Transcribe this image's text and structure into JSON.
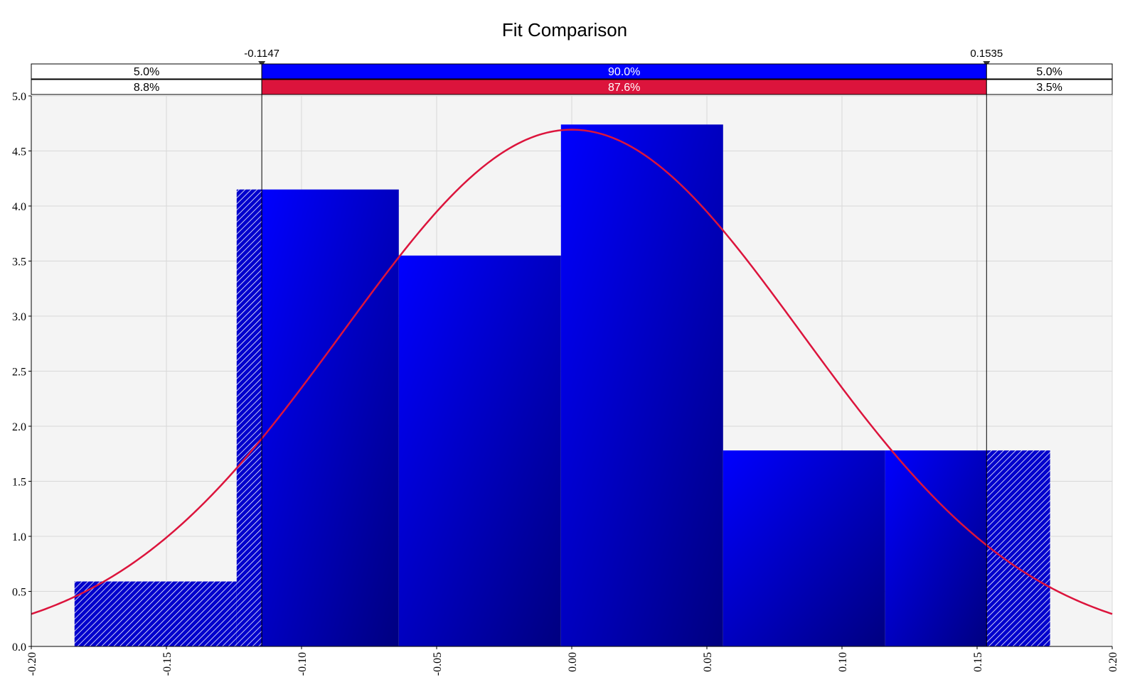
{
  "chart_data": {
    "type": "bar",
    "title": "Fit Comparison",
    "xlabel": "",
    "ylabel": "",
    "xlim": [
      -0.2,
      0.2
    ],
    "ylim": [
      0,
      5.0
    ],
    "x_ticks": [
      "-0.20",
      "-0.15",
      "-0.10",
      "-0.05",
      "0.00",
      "0.05",
      "0.10",
      "0.15",
      "0.20"
    ],
    "y_ticks": [
      "0.0",
      "0.5",
      "1.0",
      "1.5",
      "2.0",
      "2.5",
      "3.0",
      "3.5",
      "4.0",
      "4.5",
      "5.0"
    ],
    "grid": true,
    "histogram": {
      "bins": [
        {
          "x0": -0.184,
          "x1": -0.124,
          "value": 0.59
        },
        {
          "x0": -0.124,
          "x1": -0.064,
          "value": 4.15
        },
        {
          "x0": -0.064,
          "x1": -0.004,
          "value": 3.55
        },
        {
          "x0": -0.004,
          "x1": 0.056,
          "value": 4.74
        },
        {
          "x0": 0.056,
          "x1": 0.116,
          "value": 1.78
        },
        {
          "x0": 0.116,
          "x1": 0.177,
          "value": 1.78
        }
      ],
      "color": "#0000ff"
    },
    "fit_curve": {
      "type": "normal",
      "mean": 0.0,
      "std": 0.085,
      "color": "#dc143c"
    },
    "markers": {
      "left": {
        "value": -0.1147,
        "label": "-0.1147"
      },
      "right": {
        "value": 0.1535,
        "label": "0.1535"
      }
    },
    "bands": [
      {
        "color": "#0000ff",
        "left": "5.0%",
        "middle": "90.0%",
        "right": "5.0%"
      },
      {
        "color": "#dc143c",
        "left": "8.8%",
        "middle": "87.6%",
        "right": "3.5%"
      }
    ]
  }
}
